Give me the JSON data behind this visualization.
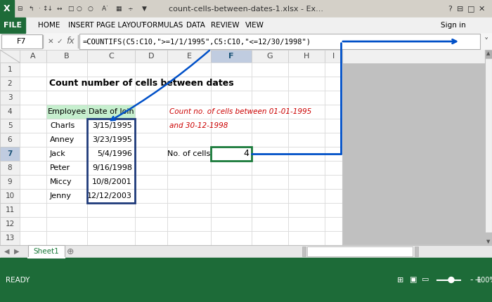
{
  "title_bar_text": "count-cells-between-dates-1.xlsx - Ex...",
  "cell_ref": "F7",
  "formula_text": "=COUNTIFS(C5:C10,\">=\"&\"1/1/1995\",C5:C10,\"<=\"&\"12/30/1998\")",
  "formula_display": "=COUNTIFS(C5:C10,\">= 1/1/1995\",C5:C10,\"<=12/30/1998\")",
  "spreadsheet_title": "Count number of cells between dates",
  "employees": [
    "Charls",
    "Anney",
    "Jack",
    "Peter",
    "Miccy",
    "Jenny"
  ],
  "dates": [
    "3/15/1995",
    "3/23/1995",
    "5/4/1996",
    "9/16/1998",
    "10/8/2001",
    "12/12/2003"
  ],
  "result_label": "No. of cells",
  "result_value": "4",
  "red_line1": "Count no. of cells between 01-01-1995",
  "red_line2": "and 30-12-1998",
  "col_labels": [
    "A",
    "B",
    "C",
    "D",
    "E",
    "F",
    "G",
    "H",
    "I"
  ],
  "header_green_bg": "#c6efce",
  "green_dark": "#107c41",
  "blue_border": "#1e3a5f",
  "arrow_blue": "#0050c8",
  "red_color": "#cc0000",
  "grid_color": "#d0d0d0",
  "row_header_highlight": "#c0c8d8",
  "col_header_highlight": "#c0c8d8",
  "f7_border": "#1a7a3a"
}
